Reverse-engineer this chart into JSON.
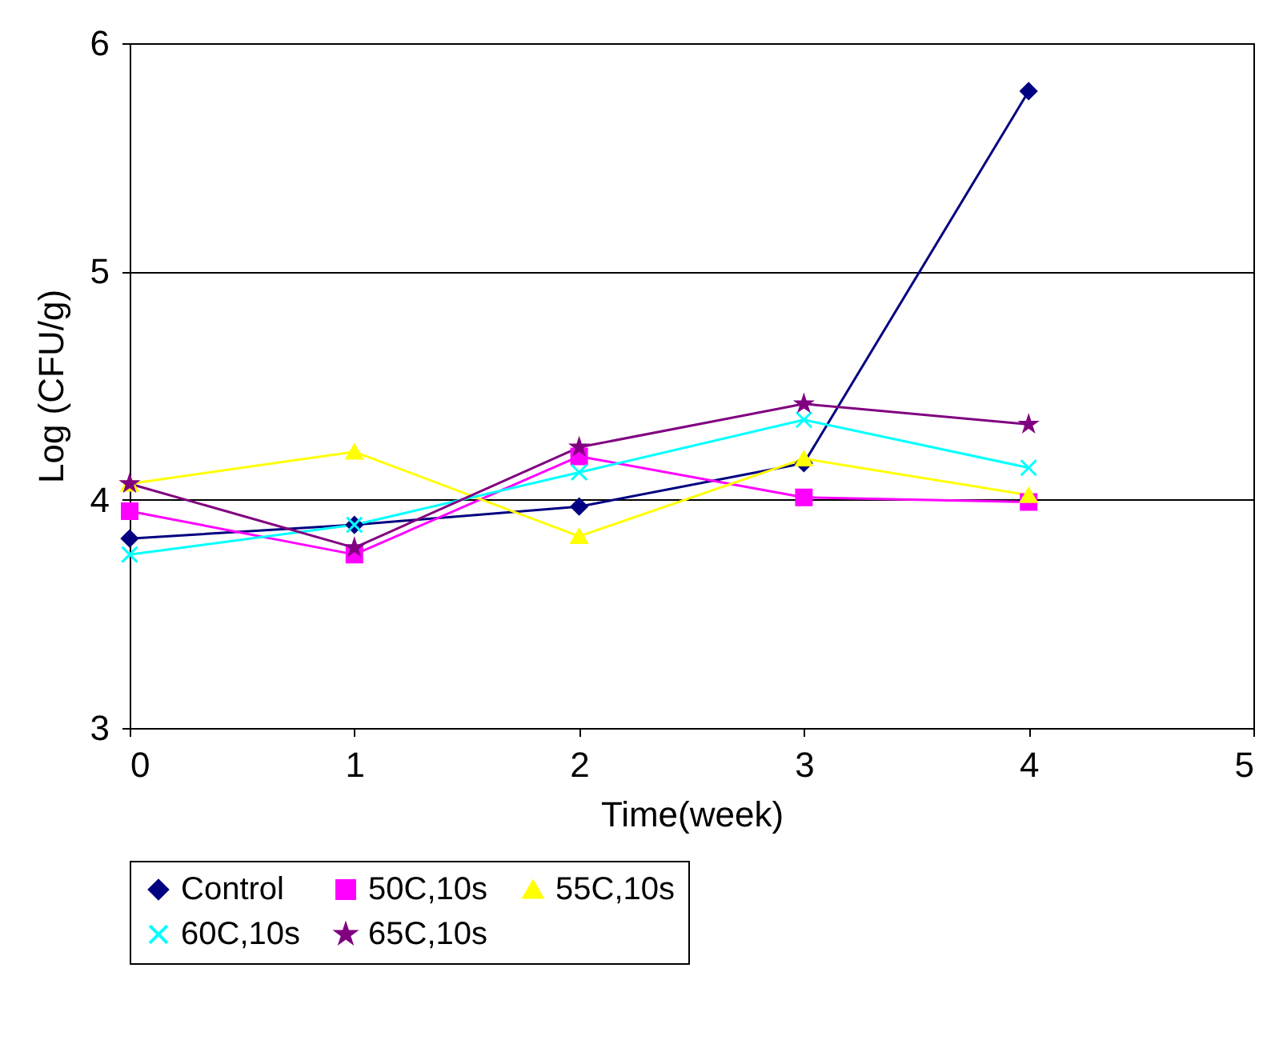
{
  "chart_data": {
    "type": "line",
    "xlabel": "Time(week)",
    "ylabel": "Log (CFU/g)",
    "x": [
      0,
      1,
      2,
      3,
      4
    ],
    "xlim": [
      0,
      5
    ],
    "xticks": [
      0,
      1,
      2,
      3,
      4,
      5
    ],
    "ylim": [
      3,
      6
    ],
    "yticks": [
      3,
      4,
      5,
      6
    ],
    "grid": "y",
    "legend": "bottom",
    "series": [
      {
        "name": "Control",
        "color": "#000080",
        "marker": "diamond",
        "values": [
          3.83,
          3.89,
          3.97,
          4.16,
          5.79
        ]
      },
      {
        "name": "50C,10s",
        "color": "#ff00ff",
        "marker": "square",
        "values": [
          3.95,
          3.76,
          4.19,
          4.01,
          3.99
        ]
      },
      {
        "name": "55C,10s",
        "color": "#ffff00",
        "marker": "triangle",
        "values": [
          4.07,
          4.21,
          3.84,
          4.18,
          4.02
        ]
      },
      {
        "name": "60C,10s",
        "color": "#00ffff",
        "marker": "cross",
        "values": [
          3.76,
          3.89,
          4.12,
          4.35,
          4.14
        ]
      },
      {
        "name": "65C,10s",
        "color": "#800080",
        "marker": "star",
        "values": [
          4.07,
          3.79,
          4.23,
          4.42,
          4.33
        ]
      }
    ]
  }
}
